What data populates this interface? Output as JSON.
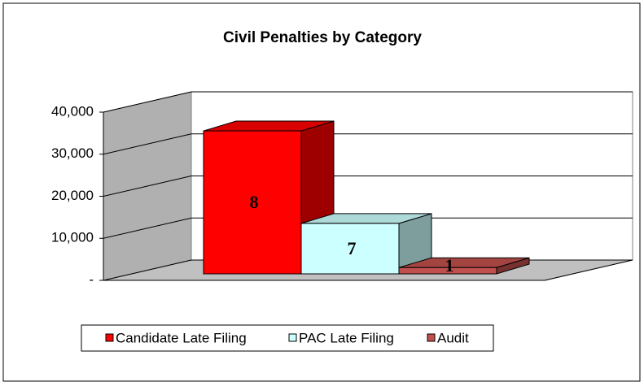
{
  "chart_data": {
    "type": "bar3d",
    "title": "Civil Penalties by Category",
    "categories": [
      "Candidate Late Filing",
      "PAC Late Filing",
      "Audit"
    ],
    "series": [
      {
        "name": "Candidate Late Filing",
        "color": "#ff0000"
      },
      {
        "name": "PAC Late Filing",
        "color": "#ccffff"
      },
      {
        "name": "Audit",
        "color": "#c0504d"
      }
    ],
    "values": [
      34000,
      12000,
      1500
    ],
    "counts": [
      8,
      7,
      1
    ],
    "ylim": [
      0,
      40000
    ],
    "yticks": [
      {
        "value": 0,
        "label": "-"
      },
      {
        "value": 10000,
        "label": "10,000"
      },
      {
        "value": 20000,
        "label": "20,000"
      },
      {
        "value": 30000,
        "label": "30,000"
      },
      {
        "value": 40000,
        "label": "40,000"
      }
    ],
    "grid": true
  }
}
